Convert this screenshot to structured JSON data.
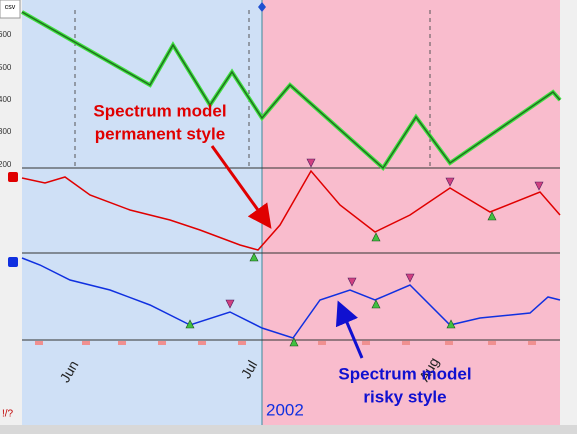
{
  "toolbar": {
    "button": "csv"
  },
  "price_axis": {
    "labels": [
      "600",
      "500",
      "400",
      "300",
      "200"
    ]
  },
  "time_axis": {
    "months": [
      "Jun",
      "Jul",
      "Aug"
    ],
    "year": "2002"
  },
  "annotations": {
    "permanent": [
      "Spectrum model",
      "permanent style"
    ],
    "risky": [
      "Spectrum model",
      "risky style"
    ]
  },
  "status": "!/?"
}
